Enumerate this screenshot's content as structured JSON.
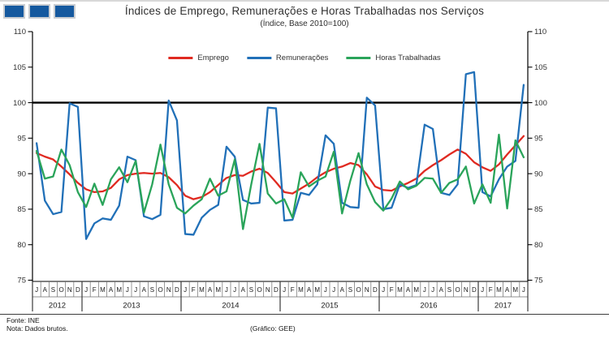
{
  "logo": {
    "square_count": 3,
    "fill": "#15599f",
    "border": "#c9cdd2"
  },
  "header": {
    "title": "Índices de Emprego, Remunerações e Horas Trabalhadas nos Serviços",
    "subtitle": "(Índice, Base 2010=100)"
  },
  "footer": {
    "source": "Fonte: INE",
    "note": "Nota: Dados brutos.",
    "credit": "(Gráfico: GEE)"
  },
  "chart_data": {
    "type": "line",
    "title": "Índices de Emprego, Remunerações e Horas Trabalhadas nos Serviços",
    "subtitle": "(Índice, Base 2010=100)",
    "ylim": [
      75,
      110
    ],
    "yticks": [
      75,
      80,
      85,
      90,
      95,
      100,
      105,
      110
    ],
    "reference_line": 100,
    "grid": false,
    "legend_position": "top-center",
    "years": [
      {
        "label": "2012",
        "months": [
          "J",
          "A",
          "S",
          "O",
          "N",
          "D"
        ]
      },
      {
        "label": "2013",
        "months": [
          "J",
          "F",
          "M",
          "A",
          "M",
          "J",
          "J",
          "A",
          "S",
          "O",
          "N",
          "D"
        ]
      },
      {
        "label": "2014",
        "months": [
          "J",
          "F",
          "M",
          "A",
          "M",
          "J",
          "J",
          "A",
          "S",
          "O",
          "N",
          "D"
        ]
      },
      {
        "label": "2015",
        "months": [
          "J",
          "F",
          "M",
          "A",
          "M",
          "J",
          "J",
          "A",
          "S",
          "O",
          "N",
          "D"
        ]
      },
      {
        "label": "2016",
        "months": [
          "J",
          "F",
          "M",
          "A",
          "M",
          "J",
          "J",
          "A",
          "S",
          "O",
          "N",
          "D"
        ]
      },
      {
        "label": "2017",
        "months": [
          "J",
          "F",
          "M",
          "A",
          "M",
          "J"
        ]
      }
    ],
    "series": [
      {
        "name": "Emprego",
        "color": "#e02a21",
        "values": [
          92.9,
          92.4,
          92.0,
          91.0,
          89.9,
          88.7,
          87.8,
          87.4,
          87.5,
          88.0,
          89.2,
          89.8,
          90.0,
          90.1,
          90.0,
          90.1,
          89.5,
          88.4,
          86.9,
          86.4,
          86.7,
          87.4,
          88.4,
          89.4,
          89.8,
          89.7,
          90.3,
          90.7,
          90.1,
          88.8,
          87.4,
          87.2,
          87.9,
          88.6,
          89.5,
          90.2,
          90.7,
          91.0,
          91.5,
          91.2,
          89.9,
          88.2,
          87.7,
          87.6,
          88.2,
          88.7,
          89.3,
          90.4,
          91.2,
          91.9,
          92.7,
          93.4,
          92.8,
          91.6,
          90.9,
          90.4,
          91.3,
          92.7,
          94.0,
          95.3
        ]
      },
      {
        "name": "Remunerações",
        "color": "#2170b8",
        "values": [
          94.3,
          86.2,
          84.3,
          84.6,
          99.9,
          99.4,
          80.8,
          83.0,
          83.7,
          83.5,
          85.5,
          92.4,
          91.9,
          84.0,
          83.6,
          84.2,
          100.3,
          97.5,
          81.5,
          81.4,
          83.8,
          84.9,
          85.6,
          93.8,
          92.4,
          86.3,
          85.8,
          85.9,
          99.3,
          99.2,
          83.4,
          83.5,
          87.3,
          87.0,
          88.5,
          95.4,
          94.2,
          85.9,
          85.3,
          85.2,
          100.7,
          99.6,
          85.0,
          85.2,
          88.5,
          88.0,
          88.4,
          96.9,
          96.3,
          87.3,
          87.0,
          88.5,
          104.0,
          104.3,
          87.4,
          86.8,
          89.2,
          91.0,
          91.8,
          102.5
        ]
      },
      {
        "name": "Horas Trabalhadas",
        "color": "#2aa45a",
        "values": [
          93.2,
          89.3,
          89.6,
          93.4,
          91.2,
          87.4,
          85.3,
          88.6,
          85.6,
          89.2,
          90.9,
          88.8,
          91.8,
          84.5,
          88.5,
          94.1,
          88.5,
          85.2,
          84.4,
          85.5,
          86.4,
          89.3,
          86.9,
          87.5,
          92.0,
          82.2,
          88.5,
          94.2,
          87.2,
          85.8,
          86.4,
          83.8,
          90.2,
          88.2,
          89.0,
          89.6,
          93.1,
          84.4,
          89.0,
          92.9,
          88.5,
          86.0,
          84.8,
          86.5,
          88.9,
          87.8,
          88.3,
          89.4,
          89.3,
          87.3,
          88.7,
          89.2,
          91.0,
          85.8,
          88.5,
          85.9,
          95.5,
          85.1,
          94.7,
          92.3
        ]
      }
    ]
  }
}
